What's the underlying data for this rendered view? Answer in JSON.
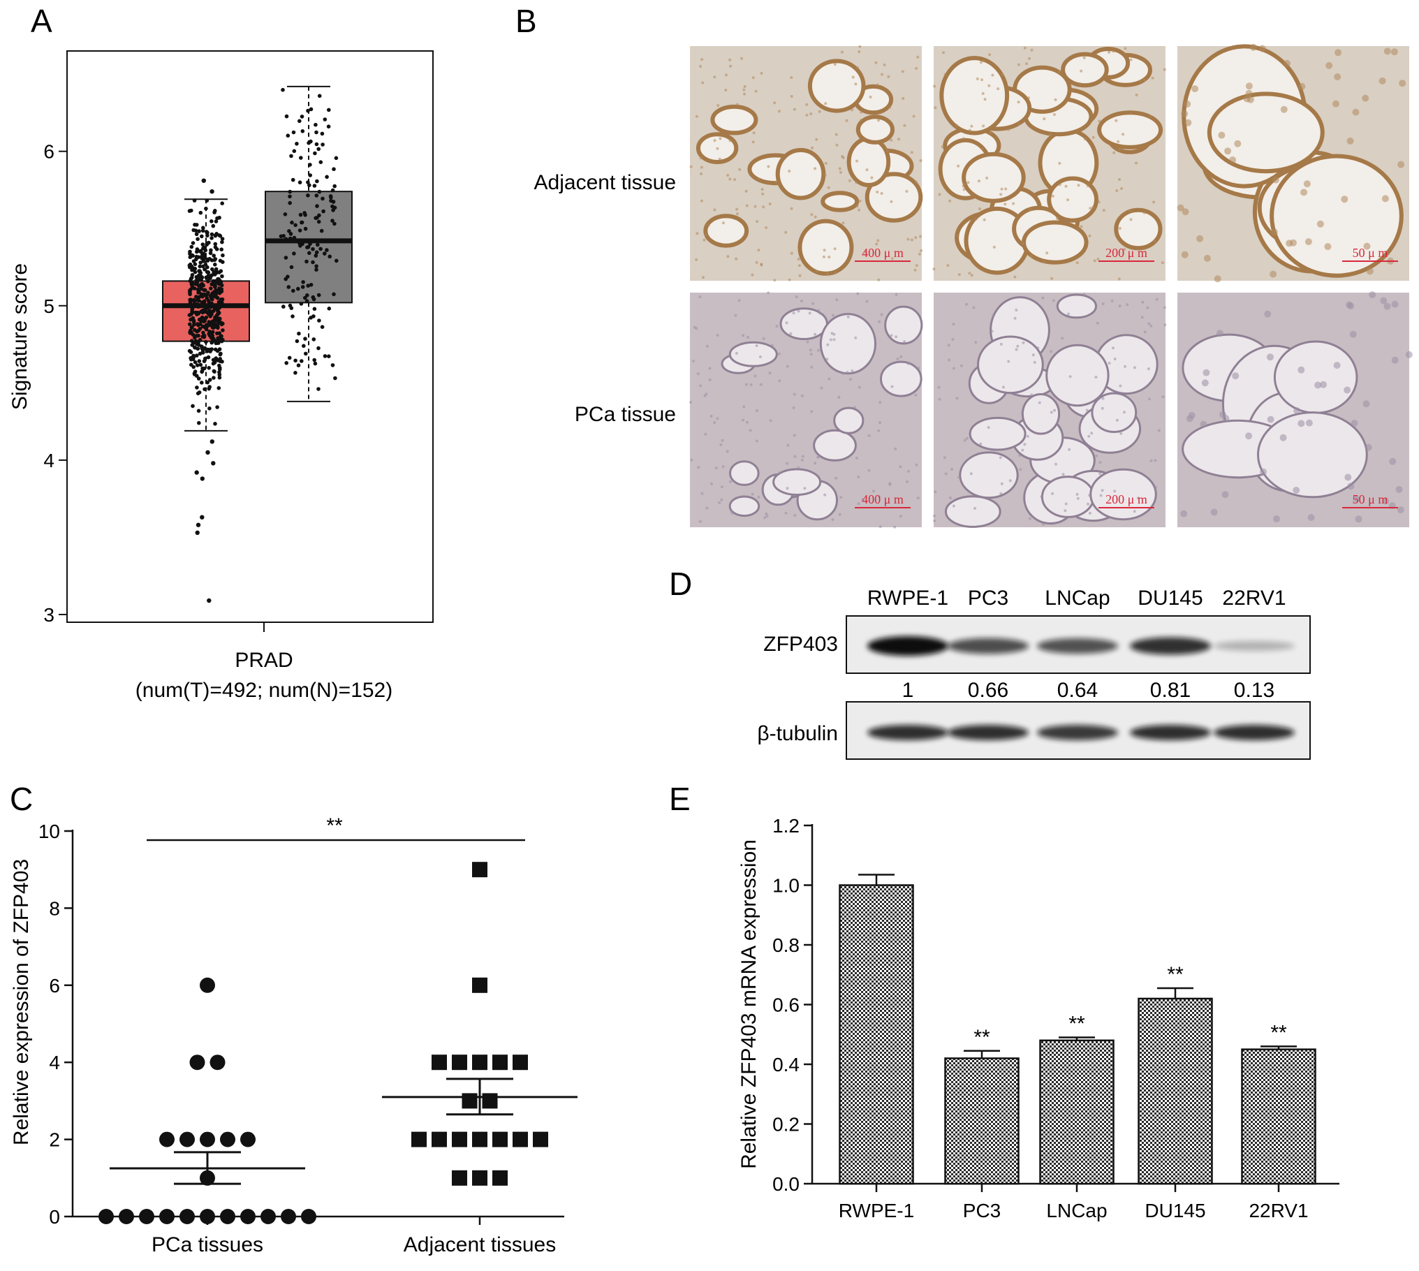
{
  "panels": {
    "A": {
      "letter": "A",
      "chart_data": {
        "type": "boxplot",
        "ylabel": "Signature score",
        "ylim": [
          2.95,
          6.65
        ],
        "yticks": [
          3,
          4,
          5,
          6
        ],
        "category": "PRAD",
        "subtitle": "(num(T)=492; num(N)=152)",
        "series": [
          {
            "color": "#e8625f",
            "n": 492,
            "min": 4.19,
            "q1": 4.77,
            "median": 5.0,
            "q3": 5.16,
            "max": 5.69,
            "outliers": [
              5.81,
              5.74,
              4.12,
              4.05,
              3.98,
              3.92,
              3.88,
              3.63,
              3.58,
              3.53,
              3.09
            ]
          },
          {
            "color": "#808080",
            "n": 152,
            "min": 4.38,
            "q1": 5.02,
            "median": 5.42,
            "q3": 5.74,
            "max": 6.42,
            "outliers": []
          }
        ]
      }
    },
    "B": {
      "letter": "B",
      "rows": [
        {
          "label": "Adjacent tissue",
          "scales": [
            "400 μ m",
            "200 μ m",
            "50 μ m"
          ]
        },
        {
          "label": "PCa tissue",
          "scales": [
            "400 μ m",
            "200 μ m",
            "50 μ m"
          ]
        }
      ]
    },
    "C": {
      "letter": "C",
      "chart_data": {
        "type": "scatter",
        "ylabel": "Relative expression of ZFP403",
        "ylim": [
          0,
          10
        ],
        "yticks": [
          0,
          2,
          4,
          6,
          8,
          10
        ],
        "categories": [
          "PCa tissues",
          "Adjacent tissues"
        ],
        "significance": "**",
        "series": [
          {
            "marker": "circle",
            "mean": 1.25,
            "sem_low": 0.85,
            "sem_high": 1.67,
            "points": [
              6,
              4,
              4,
              2,
              2,
              2,
              2,
              2,
              1,
              0,
              0,
              0,
              0,
              0,
              0,
              0,
              0,
              0,
              0,
              0
            ]
          },
          {
            "marker": "square",
            "mean": 3.1,
            "sem_low": 2.65,
            "sem_high": 3.57,
            "points": [
              9,
              6,
              4,
              4,
              4,
              4,
              4,
              3,
              3,
              2,
              2,
              2,
              2,
              2,
              2,
              2,
              1,
              1,
              1
            ]
          }
        ]
      }
    },
    "D": {
      "letter": "D",
      "lanes": [
        "RWPE-1",
        "PC3",
        "LNCap",
        "DU145",
        "22RV1"
      ],
      "target": "ZFP403",
      "loading": "β-tubulin",
      "ratios": [
        "1",
        "0.66",
        "0.64",
        "0.81",
        "0.13"
      ],
      "target_intensity": [
        1.0,
        0.66,
        0.64,
        0.81,
        0.13
      ],
      "loading_intensity": [
        0.85,
        0.85,
        0.8,
        0.85,
        0.85
      ]
    },
    "E": {
      "letter": "E",
      "chart_data": {
        "type": "bar",
        "ylabel": "Relative ZFP403 mRNA expression",
        "ylim": [
          0,
          1.2
        ],
        "yticks": [
          "0.0",
          "0.2",
          "0.4",
          "0.6",
          "0.8",
          "1.0",
          "1.2"
        ],
        "categories": [
          "RWPE-1",
          "PC3",
          "LNCap",
          "DU145",
          "22RV1"
        ],
        "values": [
          1.0,
          0.42,
          0.48,
          0.62,
          0.45
        ],
        "errors": [
          0.035,
          0.025,
          0.01,
          0.035,
          0.01
        ],
        "annotations": [
          "",
          "**",
          "**",
          "**",
          "**"
        ]
      }
    }
  }
}
